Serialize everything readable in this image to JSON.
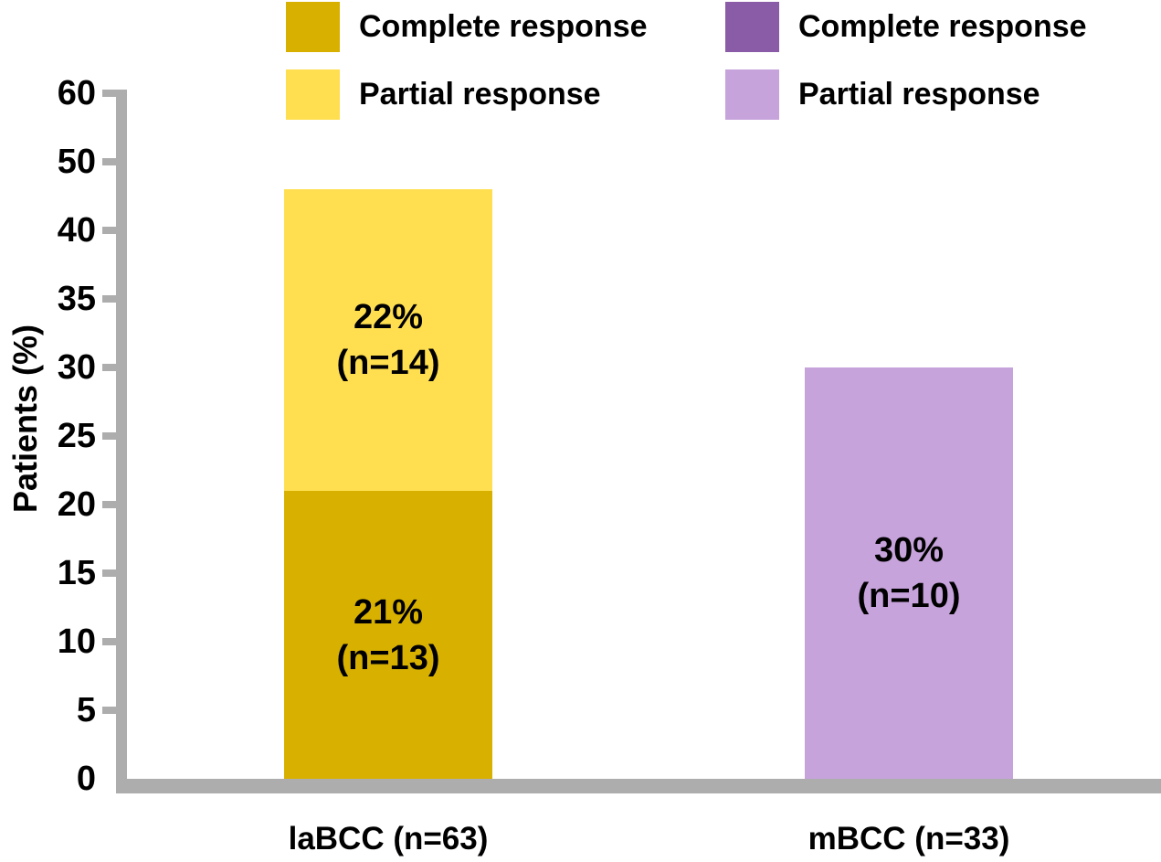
{
  "chart_data": {
    "type": "bar",
    "variant": "stacked-vertical",
    "title": "",
    "ylabel": "Patients (%)",
    "xlabel": "",
    "grid": false,
    "y_axis": {
      "tick_labels": [
        "60",
        "50",
        "40",
        "35",
        "30",
        "25",
        "20",
        "15",
        "10",
        "5",
        "0"
      ],
      "unit": "%",
      "note": "ticks equally spaced on screen; labeled in steps of 5 from 0 to 40, then steps of 10 (compressed) up to 60"
    },
    "categories": [
      "laBCC (n=63)",
      "mBCC (n=33)"
    ],
    "legend": [
      {
        "label": "Complete response",
        "color": "#D8B100"
      },
      {
        "label": "Partial response",
        "color": "#FFDF50"
      },
      {
        "label": "Complete response",
        "color": "#8A5BA6"
      },
      {
        "label": "Partial response",
        "color": "#C7A3DC"
      }
    ],
    "groups": [
      {
        "label": "laBCC (n=63)",
        "segments": [
          {
            "name": "complete-response",
            "value_pct": 21,
            "n": 13,
            "label_lines": [
              "21%",
              "(n=13)"
            ],
            "color": "#D8B100"
          },
          {
            "name": "partial-response",
            "value_pct": 22,
            "n": 14,
            "label_lines": [
              "22%",
              "(n=14)"
            ],
            "color": "#FFDF50"
          }
        ]
      },
      {
        "label": "mBCC (n=33)",
        "segments": [
          {
            "name": "partial-response",
            "value_pct": 30,
            "n": 10,
            "label_lines": [
              "30%",
              "(n=10)"
            ],
            "color": "#C7A3DC"
          }
        ]
      }
    ],
    "colors": {
      "axis": "#ADADAD",
      "text": "#000000"
    }
  }
}
